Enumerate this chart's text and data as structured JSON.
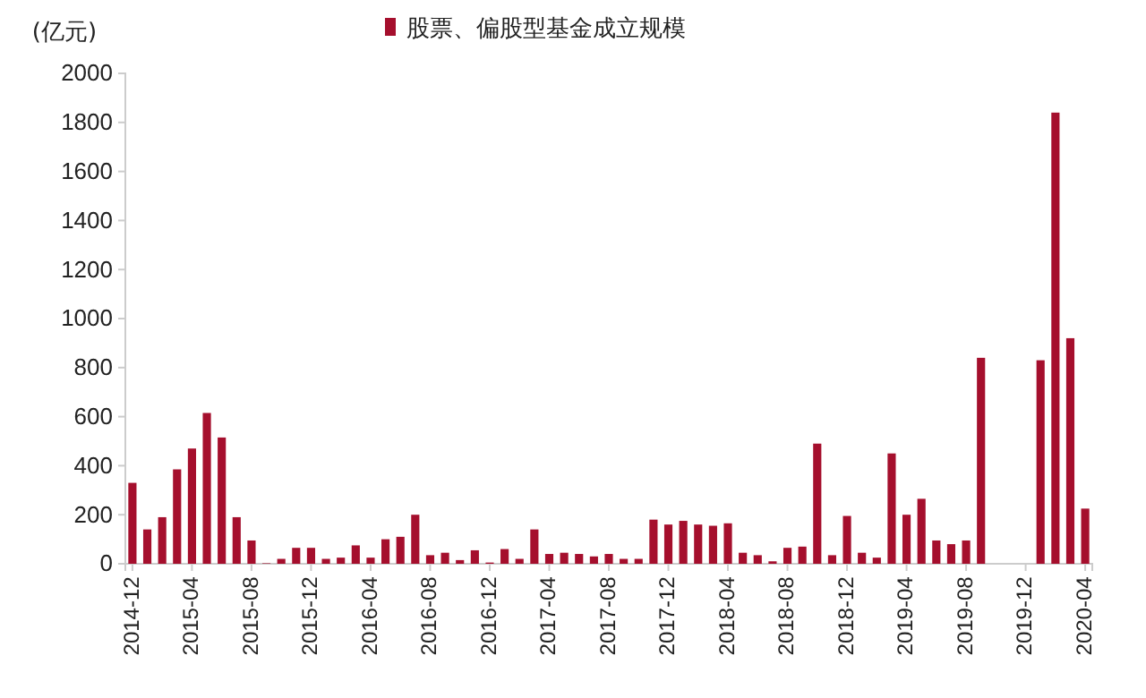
{
  "chart_data": {
    "type": "bar",
    "ylabel": "(亿元)",
    "legend": "top",
    "categories": [
      "2014-12",
      null,
      null,
      null,
      "2015-04",
      null,
      null,
      null,
      "2015-08",
      null,
      null,
      null,
      "2015-12",
      null,
      null,
      null,
      "2016-04",
      null,
      null,
      null,
      "2016-08",
      null,
      null,
      null,
      "2016-12",
      null,
      null,
      null,
      "2017-04",
      null,
      null,
      null,
      "2017-08",
      null,
      null,
      null,
      "2017-12",
      null,
      null,
      null,
      "2018-04",
      null,
      null,
      null,
      "2018-08",
      null,
      null,
      null,
      "2018-12",
      null,
      null,
      null,
      "2019-04",
      null,
      null,
      null,
      "2019-08",
      null,
      null,
      null,
      "2019-12",
      null,
      null,
      null,
      "2020-04"
    ],
    "series": [
      {
        "name": "股票、偏股型基金成立规模",
        "color": "#a50f2d",
        "values": [
          330,
          140,
          190,
          385,
          470,
          615,
          515,
          190,
          95,
          2,
          20,
          65,
          65,
          20,
          25,
          75,
          25,
          100,
          110,
          200,
          35,
          45,
          15,
          55,
          5,
          60,
          20,
          140,
          40,
          45,
          40,
          30,
          40,
          20,
          20,
          180,
          160,
          175,
          160,
          155,
          165,
          45,
          35,
          10,
          65,
          70,
          490,
          35,
          195,
          45,
          25,
          450,
          200,
          265,
          95,
          80,
          95,
          840,
          0,
          0,
          0,
          830,
          1840,
          920,
          225
        ]
      }
    ],
    "ylim": [
      0,
      2000
    ],
    "yticks": [
      0,
      200,
      400,
      600,
      800,
      1000,
      1200,
      1400,
      1600,
      1800,
      2000
    ],
    "grid": false
  }
}
